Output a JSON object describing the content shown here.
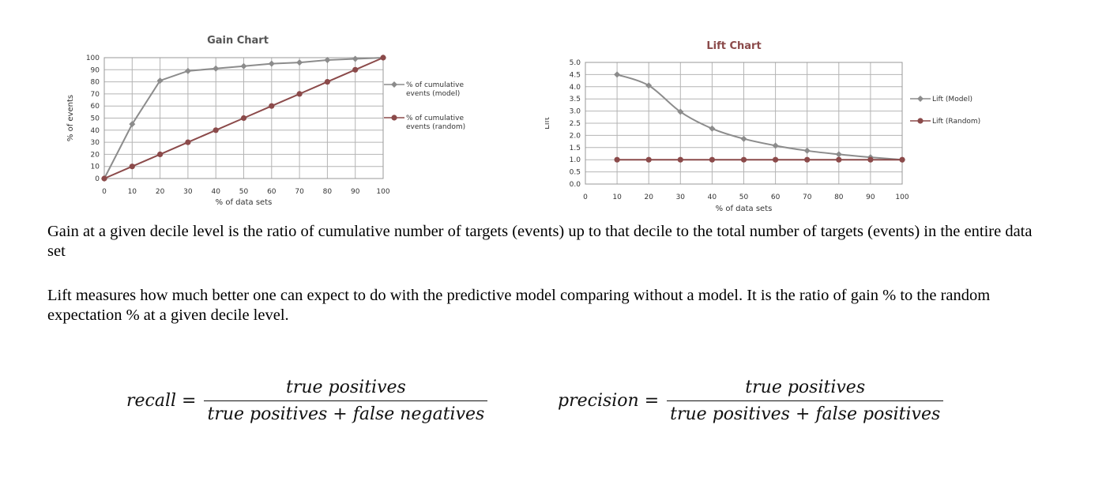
{
  "chart_data": [
    {
      "type": "line",
      "title": "Gain Chart",
      "xlabel": "% of data sets",
      "ylabel": "% of events",
      "xlim": [
        0,
        100
      ],
      "ylim": [
        0,
        100
      ],
      "x_ticks": [
        0,
        10,
        20,
        30,
        40,
        50,
        60,
        70,
        80,
        90,
        100
      ],
      "y_ticks": [
        0,
        10,
        20,
        30,
        40,
        50,
        60,
        70,
        80,
        90,
        100
      ],
      "grid": true,
      "legend_position": "right",
      "x": [
        0,
        10,
        20,
        30,
        40,
        50,
        60,
        70,
        80,
        90,
        100
      ],
      "series": [
        {
          "name": "% of cumulative events (model)",
          "values": [
            0,
            45,
            81,
            89,
            91,
            93,
            95,
            96,
            98,
            99,
            100
          ],
          "color": "#8c8c8c",
          "marker": "diamond"
        },
        {
          "name": "% of cumulative events (random)",
          "values": [
            0,
            10,
            20,
            30,
            40,
            50,
            60,
            70,
            80,
            90,
            100
          ],
          "color": "#8b4a4a",
          "marker": "circle"
        }
      ]
    },
    {
      "type": "line",
      "title": "Lift Chart",
      "xlabel": "% of data sets",
      "ylabel": "Lift",
      "xlim": [
        0,
        100
      ],
      "ylim": [
        0,
        5
      ],
      "x_ticks": [
        0,
        10,
        20,
        30,
        40,
        50,
        60,
        70,
        80,
        90,
        100
      ],
      "y_ticks": [
        "0.0",
        "0.5",
        "1.0",
        "1.5",
        "2.0",
        "2.5",
        "3.0",
        "3.5",
        "4.0",
        "4.5",
        "5.0"
      ],
      "grid": true,
      "legend_position": "right",
      "x": [
        10,
        20,
        30,
        40,
        50,
        60,
        70,
        80,
        90,
        100
      ],
      "series": [
        {
          "name": "Lift (Model)",
          "values": [
            4.5,
            4.05,
            2.97,
            2.28,
            1.86,
            1.58,
            1.37,
            1.22,
            1.1,
            1.0
          ],
          "color": "#8c8c8c",
          "marker": "diamond",
          "smooth": true
        },
        {
          "name": "Lift (Random)",
          "values": [
            1,
            1,
            1,
            1,
            1,
            1,
            1,
            1,
            1,
            1
          ],
          "color": "#8b4a4a",
          "marker": "circle"
        }
      ]
    }
  ],
  "colors": {
    "gain_title": "#555555",
    "lift_title": "#8b4a4a",
    "grid": "#b4b4b4"
  },
  "text": {
    "gain_definition": "Gain at a given decile level is the ratio of cumulative number of targets (events) up to that decile to the total number of targets (events) in the entire data set",
    "lift_definition": "Lift measures how much better one can expect to do with the predictive model comparing without a model. It is the ratio of gain % to the random expectation % at a given decile level."
  },
  "formulas": {
    "recall": {
      "lhs": "recall =",
      "numerator": "true positives",
      "denominator": "true positives + false negatives"
    },
    "precision": {
      "lhs": "precision =",
      "numerator": "true positives",
      "denominator": "true positives + false positives"
    }
  }
}
